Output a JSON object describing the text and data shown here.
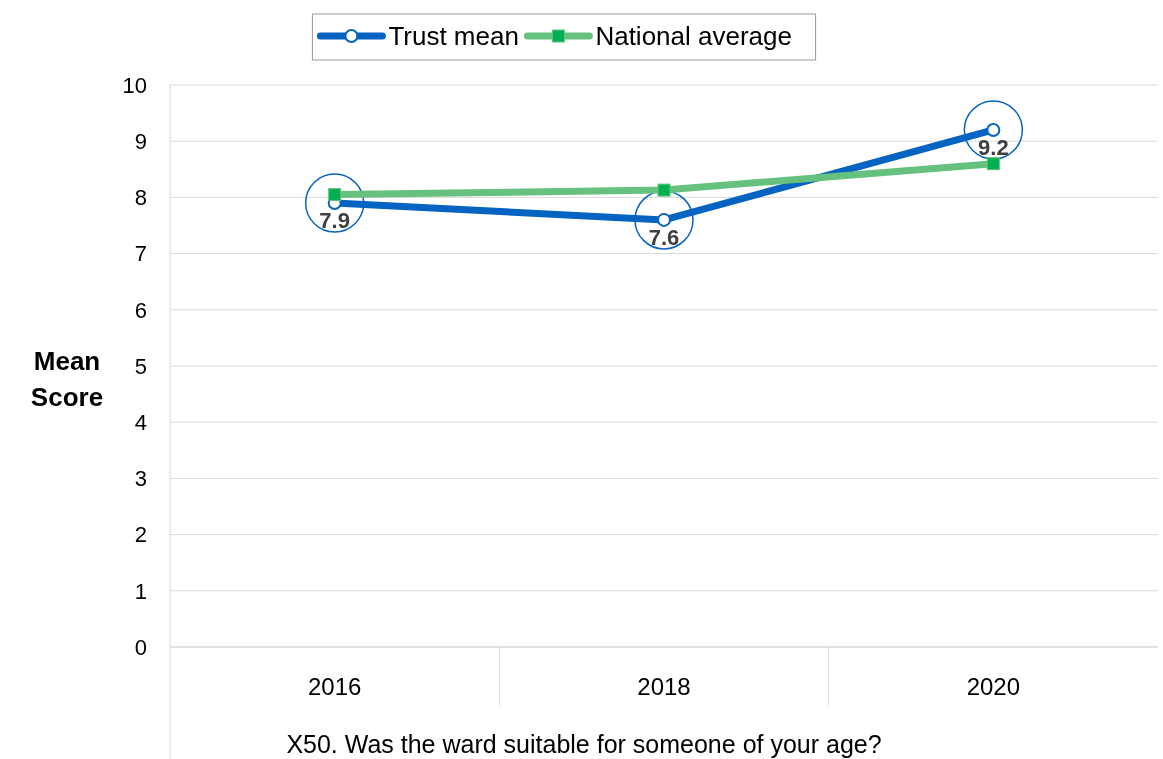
{
  "chart_data": {
    "type": "line",
    "xlabel": "X50. Was the ward suitable for someone of your age?",
    "ylabel": "Mean Score",
    "categories": [
      "2016",
      "2018",
      "2020"
    ],
    "series": [
      {
        "name": "Trust mean",
        "color": "#0563c1",
        "values": [
          7.9,
          7.6,
          9.2
        ],
        "marker": "circle",
        "value_labels": [
          "7.9",
          "7.6",
          "9.2"
        ]
      },
      {
        "name": "National average",
        "color": "#66c17f",
        "values": [
          8.05,
          8.13,
          8.6
        ],
        "marker": "square"
      }
    ],
    "ylim": [
      0,
      10
    ],
    "yticks": [
      0,
      1,
      2,
      3,
      4,
      5,
      6,
      7,
      8,
      9,
      10
    ],
    "grid": "y",
    "legend": "top"
  }
}
